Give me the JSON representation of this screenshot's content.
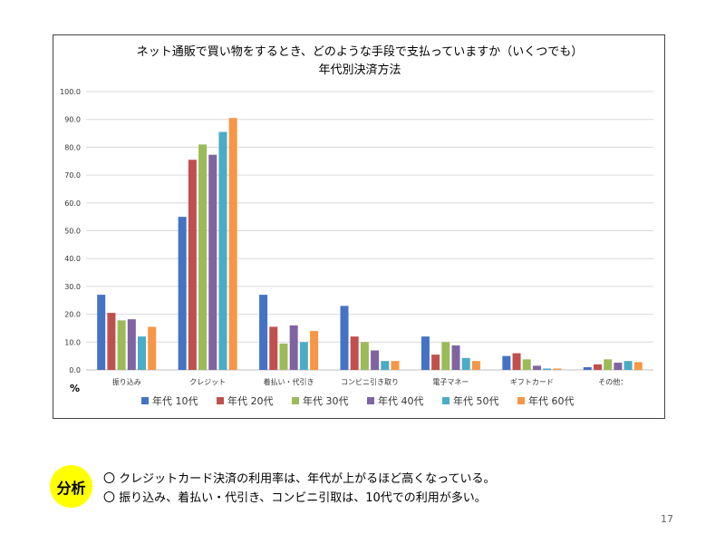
{
  "chart_data": {
    "type": "bar",
    "title": "ネット通販で買い物をするとき、どのような手段で支払っていますか（いくつでも）",
    "subtitle": "年代別決済方法",
    "categories": [
      "振り込み",
      "クレジット",
      "着払い・代引き",
      "コンビニ引き取り",
      "電子マネー",
      "ギフトカード",
      "その他："
    ],
    "series": [
      {
        "name": "年代 10代",
        "color": "#4472c4",
        "values": [
          27.0,
          55.0,
          27.0,
          23.0,
          12.0,
          5.0,
          1.0
        ]
      },
      {
        "name": "年代 20代",
        "color": "#c0504d",
        "values": [
          20.5,
          75.5,
          15.5,
          12.0,
          5.5,
          6.0,
          2.0
        ]
      },
      {
        "name": "年代 30代",
        "color": "#9bbb59",
        "values": [
          17.8,
          81.0,
          9.5,
          10.0,
          10.0,
          3.8,
          3.8
        ]
      },
      {
        "name": "年代 40代",
        "color": "#8064a2",
        "values": [
          18.2,
          77.3,
          16.0,
          7.0,
          8.8,
          1.5,
          2.6
        ]
      },
      {
        "name": "年代 50代",
        "color": "#4bacc6",
        "values": [
          12.0,
          85.5,
          10.0,
          3.2,
          4.3,
          0.5,
          3.2
        ]
      },
      {
        "name": "年代 60代",
        "color": "#f79646",
        "values": [
          15.5,
          90.5,
          14.0,
          3.2,
          3.2,
          0.5,
          2.8
        ]
      }
    ],
    "ylim": [
      0,
      100
    ],
    "yticks": [
      "0.0",
      "10.0",
      "20.0",
      "30.0",
      "40.0",
      "50.0",
      "60.0",
      "70.0",
      "80.0",
      "90.0",
      "100.0"
    ],
    "unit_label": "%",
    "grid": true,
    "legend_position": "bottom"
  },
  "analysis": {
    "badge": "分析",
    "lines": [
      "〇 クレジットカード決済の利用率は、年代が上がるほど高くなっている。",
      "〇 振り込み、着払い・代引き、コンビニ引取は、10代での利用が多い。"
    ]
  },
  "page_number": "17"
}
